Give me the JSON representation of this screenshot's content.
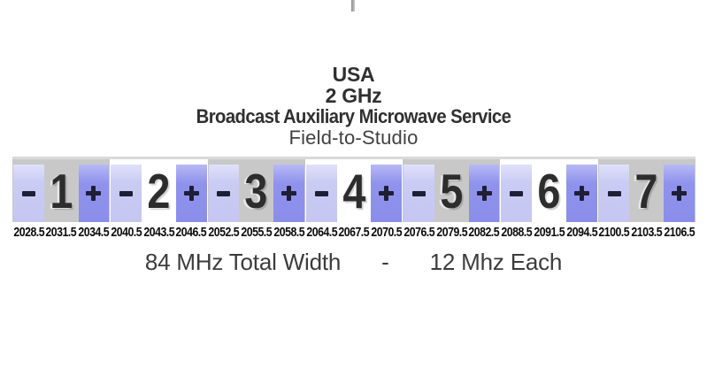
{
  "title": {
    "line1": "USA",
    "line2": "2 GHz",
    "line3": "Broadcast Auxiliary Microwave Service",
    "line4": "Field-to-Studio"
  },
  "band": {
    "symbols": {
      "minus": "-",
      "plus": "+"
    },
    "channels": [
      {
        "number": "1",
        "shade": "gray",
        "freqs": [
          "2028.5",
          "2031.5",
          "2034.5"
        ]
      },
      {
        "number": "2",
        "shade": "white",
        "freqs": [
          "2040.5",
          "2043.5",
          "2046.5"
        ]
      },
      {
        "number": "3",
        "shade": "gray",
        "freqs": [
          "2052.5",
          "2055.5",
          "2058.5"
        ]
      },
      {
        "number": "4",
        "shade": "white",
        "freqs": [
          "2064.5",
          "2067.5",
          "2070.5"
        ]
      },
      {
        "number": "5",
        "shade": "gray",
        "freqs": [
          "2076.5",
          "2079.5",
          "2082.5"
        ]
      },
      {
        "number": "6",
        "shade": "white",
        "freqs": [
          "2088.5",
          "2091.5",
          "2094.5"
        ]
      },
      {
        "number": "7",
        "shade": "gray",
        "freqs": [
          "2100.5",
          "2103.5",
          "2106.5"
        ]
      }
    ],
    "colors": {
      "group_gray": "#c8c8c8",
      "group_white": "#ffffff",
      "minus_cell": "#cbccf4",
      "plus_cell": "#8f93ec",
      "symbol": "#1e1e36",
      "channel_number": "#2d2d2d",
      "freq_label": "#0b0b0b",
      "band_border": "#d9d9d9"
    }
  },
  "footer": {
    "left": "84 MHz Total Width",
    "separator": "-",
    "right": "12 Mhz Each"
  },
  "decor": {
    "top_tick_color": "#8e8e8e"
  }
}
